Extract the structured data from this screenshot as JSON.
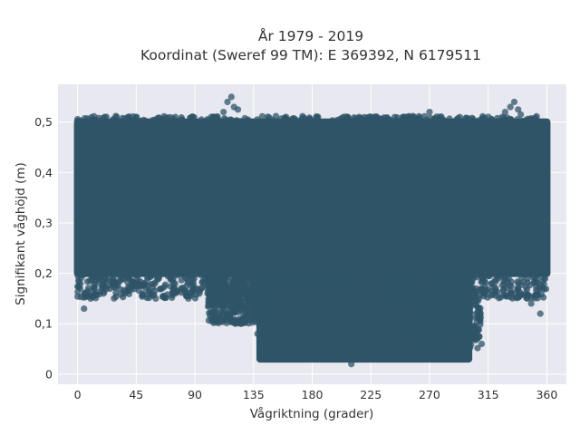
{
  "chart_data": {
    "type": "scatter",
    "title": "År 1979 - 2019",
    "subtitle": "Koordinat (Sweref 99 TM): E 369392, N 6179511",
    "xlabel": "Vågriktning (grader)",
    "ylabel": "Signifikant våghöjd (m)",
    "xlim": [
      -15,
      375
    ],
    "ylim": [
      -0.02,
      0.575
    ],
    "xticks": [
      0,
      45,
      90,
      135,
      180,
      225,
      270,
      315,
      360
    ],
    "xtick_labels": [
      "0",
      "45",
      "90",
      "135",
      "180",
      "225",
      "270",
      "315",
      "360"
    ],
    "yticks": [
      0,
      0.1,
      0.2,
      0.3,
      0.4,
      0.5
    ],
    "ytick_labels": [
      "0",
      "0,1",
      "0,2",
      "0,3",
      "0,4",
      "0,5"
    ],
    "grid": true,
    "marker_color": "#2f5468",
    "background_color": "#e8e8f0",
    "series": [
      {
        "description_of_bulk": "dense band",
        "bulk_regions": [
          {
            "x": [
              0,
              360
            ],
            "y": [
              0.2,
              0.5
            ]
          },
          {
            "x": [
              140,
              300
            ],
            "y": [
              0.03,
              0.2
            ]
          }
        ],
        "points": [
          [
            118,
            0.55
          ],
          [
            115,
            0.54
          ],
          [
            120,
            0.53
          ],
          [
            112,
            0.52
          ],
          [
            123,
            0.525
          ],
          [
            335,
            0.54
          ],
          [
            332,
            0.53
          ],
          [
            338,
            0.525
          ],
          [
            328,
            0.52
          ],
          [
            340,
            0.515
          ],
          [
            270,
            0.52
          ],
          [
            5,
            0.13
          ],
          [
            50,
            0.16
          ],
          [
            10,
            0.15
          ],
          [
            2,
            0.17
          ],
          [
            355,
            0.12
          ],
          [
            348,
            0.14
          ],
          [
            60,
            0.15
          ],
          [
            75,
            0.16
          ],
          [
            95,
            0.17
          ],
          [
            130,
            0.12
          ],
          [
            125,
            0.14
          ],
          [
            210,
            0.02
          ],
          [
            310,
            0.06
          ],
          [
            305,
            0.07
          ],
          [
            300,
            0.05
          ],
          [
            290,
            0.06
          ],
          [
            260,
            0.04
          ],
          [
            345,
            0.15
          ],
          [
            30,
            0.18
          ],
          [
            20,
            0.16
          ],
          [
            65,
            0.17
          ],
          [
            100,
            0.18
          ],
          [
            85,
            0.15
          ],
          [
            140,
            0.07
          ],
          [
            145,
            0.05
          ],
          [
            150,
            0.04
          ],
          [
            138,
            0.08
          ],
          [
            250,
            0.51
          ],
          [
            160,
            0.51
          ],
          [
            30,
            0.51
          ],
          [
            45,
            0.51
          ],
          [
            75,
            0.51
          ],
          [
            200,
            0.5
          ],
          [
            220,
            0.5
          ]
        ]
      }
    ]
  }
}
